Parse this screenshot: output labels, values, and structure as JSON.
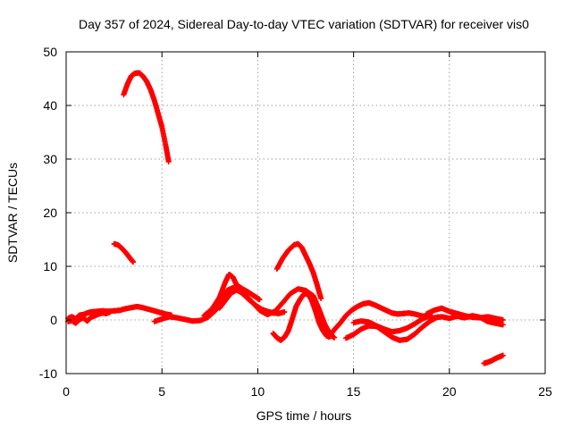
{
  "chart_data": {
    "type": "scatter",
    "title": "Day 357 of 2024, Sidereal Day-to-day VTEC variation (SDTVAR) for receiver vis0",
    "xlabel": "GPS time / hours",
    "ylabel": "SDTVAR / TECUs",
    "xlim": [
      0,
      25
    ],
    "ylim": [
      -10,
      50
    ],
    "xticks": [
      0,
      5,
      10,
      15,
      20,
      25
    ],
    "yticks": [
      -10,
      0,
      10,
      20,
      30,
      40,
      50
    ],
    "grid": true,
    "marker": "+",
    "color": "#ff0000",
    "series": [
      {
        "name": "arc-high",
        "x": [
          3.0,
          3.2,
          3.4,
          3.6,
          3.8,
          4.0,
          4.2,
          4.4,
          4.6,
          4.8,
          5.0,
          5.2,
          5.35
        ],
        "y": [
          42,
          44,
          45.5,
          46,
          46.1,
          45.5,
          44.5,
          43,
          41,
          38.5,
          36,
          32.5,
          29.5
        ]
      },
      {
        "name": "arc-mid",
        "x": [
          2.5,
          2.7,
          2.9,
          3.1,
          3.3,
          3.5
        ],
        "y": [
          14.2,
          14,
          13.4,
          12.6,
          11.7,
          10.8
        ]
      },
      {
        "name": "arc-base-1",
        "x": [
          0.1,
          0.3,
          0.5,
          0.7,
          0.9,
          1.1,
          1.3,
          1.6,
          1.9,
          2.2,
          2.5,
          2.8,
          3.1,
          3.4,
          3.7,
          4.0,
          4.3,
          4.6,
          4.9,
          5.2,
          5.5
        ],
        "y": [
          0.3,
          0.6,
          0.2,
          0.9,
          1.0,
          1.3,
          1.5,
          1.6,
          1.7,
          1.6,
          1.7,
          1.8,
          2.1,
          2.3,
          2.5,
          2.3,
          2.0,
          1.7,
          1.4,
          1.1,
          0.9
        ]
      },
      {
        "name": "arc-base-2",
        "x": [
          0.1,
          0.3,
          0.5,
          0.7,
          0.9,
          1.1,
          1.3,
          1.5,
          1.7,
          1.9,
          2.1,
          2.3
        ],
        "y": [
          -0.3,
          -0.1,
          -0.6,
          0.1,
          0.4,
          -0.2,
          0.5,
          0.8,
          1.1,
          1.3,
          1.2,
          1.5
        ]
      },
      {
        "name": "arc-4",
        "x": [
          4.6,
          5.0,
          5.4,
          5.8,
          6.2,
          6.6,
          7.0,
          7.4,
          7.8,
          8.1,
          8.4,
          8.7,
          9.0,
          9.3,
          9.6,
          9.9,
          10.2,
          10.5,
          10.8,
          11.1,
          11.4
        ],
        "y": [
          -0.3,
          0.2,
          0.6,
          0.4,
          0.1,
          -0.2,
          -0.1,
          0.5,
          1.8,
          3.8,
          5.5,
          6.0,
          5.6,
          4.6,
          3.6,
          2.7,
          2.0,
          1.6,
          1.3,
          1.2,
          1.5
        ]
      },
      {
        "name": "arc-5",
        "x": [
          7.2,
          7.6,
          8.0,
          8.3,
          8.5,
          8.7,
          8.9,
          9.2,
          9.5,
          9.8,
          10.1
        ],
        "y": [
          0.8,
          2.0,
          4.2,
          7.0,
          8.5,
          8.0,
          6.5,
          5.8,
          5.2,
          4.5,
          3.8
        ]
      },
      {
        "name": "arc-6",
        "x": [
          8.0,
          8.3,
          8.6,
          8.9,
          9.2,
          9.5,
          9.8,
          10.1,
          10.5,
          10.9,
          11.3,
          11.7,
          12.1,
          12.5,
          12.9,
          13.2,
          13.5,
          13.8,
          14.0
        ],
        "y": [
          2.2,
          3.6,
          5.0,
          5.6,
          5.0,
          4.1,
          3.0,
          1.8,
          1.0,
          1.6,
          3.2,
          4.9,
          5.8,
          5.5,
          4.5,
          2.0,
          -0.8,
          -2.8,
          -3.3
        ]
      },
      {
        "name": "arc-7",
        "x": [
          10.8,
          11.0,
          11.2,
          11.4,
          11.6,
          11.8,
          12.0,
          12.2,
          12.4,
          12.6,
          12.8,
          13.0,
          13.2,
          13.4,
          13.6,
          13.8
        ],
        "y": [
          -2.5,
          -3.3,
          -3.8,
          -3.2,
          -2.0,
          0.2,
          2.5,
          3.8,
          4.8,
          4.9,
          3.8,
          1.8,
          -0.5,
          -2.0,
          -3.0,
          -3.1
        ]
      },
      {
        "name": "arc-8",
        "x": [
          11.0,
          11.3,
          11.6,
          11.9,
          12.1,
          12.3,
          12.5,
          12.7,
          12.9,
          13.1,
          13.3
        ],
        "y": [
          9.5,
          11.5,
          13.0,
          14.0,
          14.2,
          13.5,
          12.0,
          10.5,
          8.8,
          6.5,
          4.0
        ]
      },
      {
        "name": "arc-9",
        "x": [
          13.7,
          14.0,
          14.3,
          14.6,
          14.9,
          15.2,
          15.5,
          15.8,
          16.1,
          16.4,
          16.7,
          17.0,
          17.3,
          17.6,
          17.9,
          18.2,
          18.5,
          18.8,
          19.1
        ],
        "y": [
          -3.2,
          -1.8,
          -0.6,
          0.8,
          1.8,
          2.5,
          3.0,
          3.2,
          2.8,
          2.3,
          1.8,
          1.3,
          1.1,
          1.2,
          1.3,
          1.1,
          0.8,
          0.6,
          0.8
        ]
      },
      {
        "name": "arc-10",
        "x": [
          14.6,
          15.0,
          15.4,
          15.8,
          16.2,
          16.6,
          17.0,
          17.4,
          17.8,
          18.2,
          18.6,
          19.0,
          19.4
        ],
        "y": [
          -3.4,
          -2.7,
          -1.7,
          -1.1,
          -1.2,
          -2.2,
          -3.2,
          -3.8,
          -3.6,
          -2.6,
          -1.3,
          -0.2,
          0.6
        ]
      },
      {
        "name": "arc-11",
        "x": [
          15.0,
          15.4,
          15.8,
          16.2,
          16.6,
          17.0,
          17.4,
          17.8,
          18.2,
          18.6,
          19.0
        ],
        "y": [
          -0.5,
          -0.2,
          -0.4,
          -1.1,
          -1.7,
          -2.2,
          -2.0,
          -1.5,
          -0.7,
          0.2,
          0.8
        ]
      },
      {
        "name": "arc-12",
        "x": [
          18.8,
          19.2,
          19.6,
          20.0,
          20.4,
          20.8,
          21.2,
          21.6,
          22.0,
          22.4,
          22.8
        ],
        "y": [
          1.1,
          1.8,
          2.2,
          1.6,
          1.2,
          0.8,
          0.5,
          0.4,
          0.6,
          0.3,
          0.0
        ]
      },
      {
        "name": "arc-13",
        "x": [
          19.2,
          19.6,
          20.0,
          20.4,
          20.8,
          21.2,
          21.6,
          22.0,
          22.4,
          22.8
        ],
        "y": [
          0.4,
          0.6,
          0.3,
          0.7,
          0.4,
          0.8,
          0.5,
          -0.3,
          -0.6,
          -0.9
        ]
      },
      {
        "name": "arc-14",
        "x": [
          21.8,
          22.0,
          22.2,
          22.4,
          22.6,
          22.8
        ],
        "y": [
          -8.1,
          -7.9,
          -7.6,
          -7.2,
          -6.9,
          -6.6
        ]
      }
    ]
  }
}
